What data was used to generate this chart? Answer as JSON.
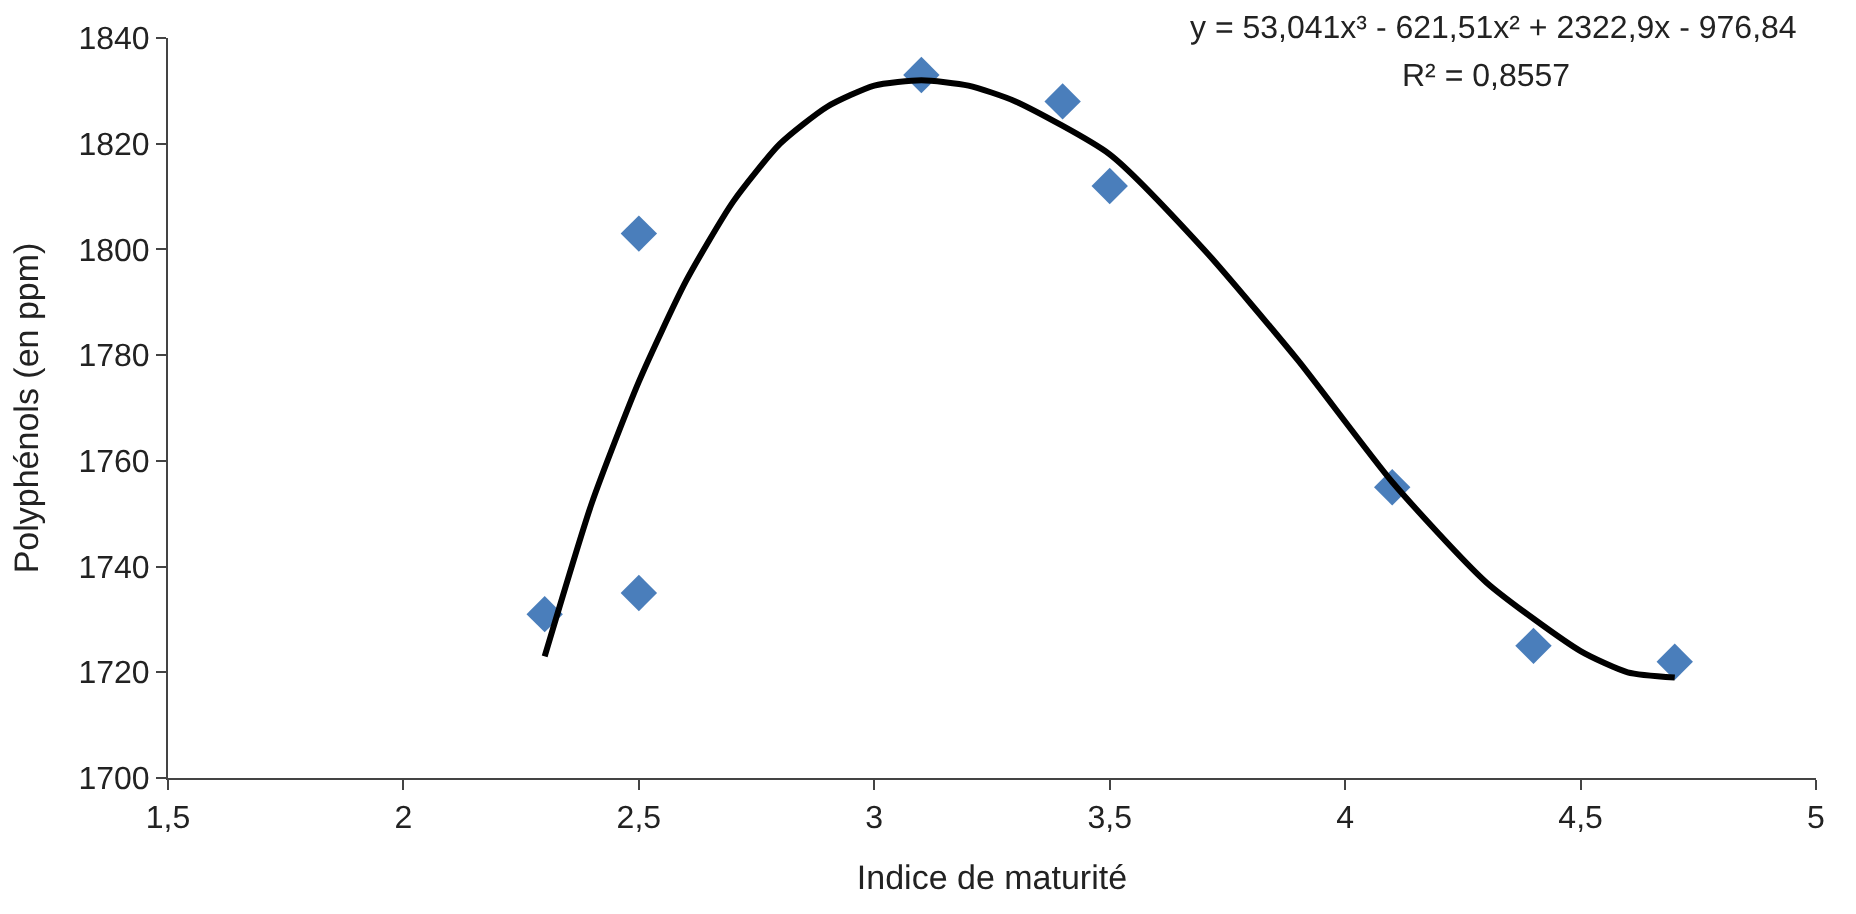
{
  "chart_data": {
    "type": "scatter",
    "xlabel": "Indice de maturité",
    "ylabel": "Polyphénols (en ppm)",
    "xlim": [
      1.5,
      5
    ],
    "xticks": [
      {
        "value": 1.5,
        "label": "1,5"
      },
      2,
      {
        "value": 2.5,
        "label": "2,5"
      },
      3,
      {
        "value": 3.5,
        "label": "3,5"
      },
      4,
      {
        "value": 4.5,
        "label": "4,5"
      },
      5
    ],
    "ylim": [
      1700,
      1840
    ],
    "yticks": [
      1700,
      1720,
      1740,
      1760,
      1780,
      1800,
      1820,
      1840
    ],
    "series": [
      {
        "marker": "diamond",
        "color": "#4a7ebb",
        "x": [
          2.3,
          2.5,
          2.5,
          3.1,
          3.4,
          3.5,
          4.1,
          4.4,
          4.7
        ],
        "values": [
          1731,
          1803,
          1735,
          1833,
          1828,
          1812,
          1755,
          1725,
          1722
        ]
      },
      {
        "type": "line",
        "marker": "none",
        "color": "#000000",
        "line_style": "solid",
        "x": [
          2.3,
          2.4,
          2.5,
          2.6,
          2.7,
          2.8,
          2.9,
          3.0,
          3.1,
          3.2,
          3.3,
          3.5,
          3.7,
          3.9,
          4.1,
          4.3,
          4.5,
          4.6,
          4.7
        ],
        "values": [
          1723,
          1752,
          1775,
          1794,
          1809,
          1820,
          1827,
          1831,
          1832,
          1831,
          1828,
          1818,
          1800,
          1779,
          1756,
          1737,
          1724,
          1720,
          1719
        ]
      }
    ],
    "annotations": [
      "y = 53,041x³ - 621,51x² + 2322,9x - 976,84",
      "R² = 0,8557"
    ]
  }
}
